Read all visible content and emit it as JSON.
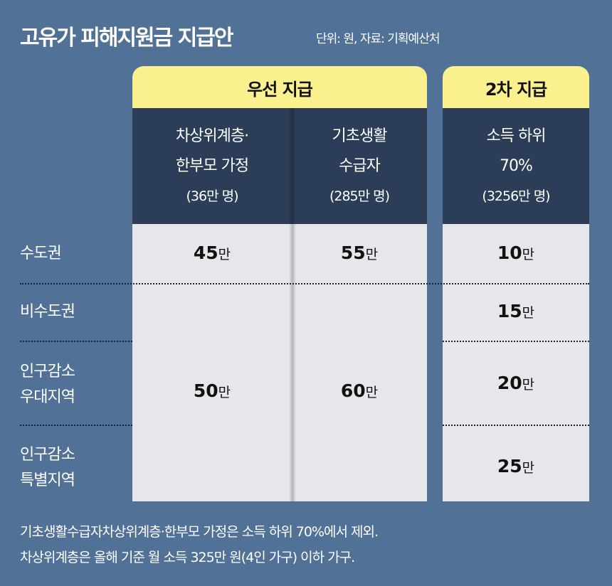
{
  "title": "고유가 피해지원금 지급안",
  "subtitle": "단위: 원, 자료: 기획예산처",
  "groups": {
    "first": "우선 지급",
    "second": "2차 지급"
  },
  "columns": [
    {
      "line1": "차상위계층·",
      "line2": "한부모 가정",
      "count": "(36만 명)"
    },
    {
      "line1": "기초생활",
      "line2": "수급자",
      "count": "(285만 명)"
    },
    {
      "line1": "소득 하위",
      "line2": "70%",
      "count": "(3256만 명)"
    }
  ],
  "rows": [
    {
      "label1": "수도권",
      "label2": ""
    },
    {
      "label1": "비수도권",
      "label2": ""
    },
    {
      "label1": "인구감소",
      "label2": "우대지역"
    },
    {
      "label1": "인구감소",
      "label2": "특별지역"
    }
  ],
  "unit": "만",
  "values": {
    "col1": {
      "capital": "45",
      "others": "50"
    },
    "col2": {
      "capital": "55",
      "others": "60"
    },
    "col3": [
      "10",
      "15",
      "20",
      "25"
    ]
  },
  "notes": [
    "기초생활수급자차상위계층·한부모 가정은 소득 하위 70%에서 제외.",
    "차상위계층은 올해 기준 월 소득 325만 원(4인 가구) 이하 가구."
  ],
  "colors": {
    "background": "#527196",
    "header_yellow": "#fbf08e",
    "header_dark": "#2b3d57",
    "cell_gray": "#e6e7ea"
  }
}
